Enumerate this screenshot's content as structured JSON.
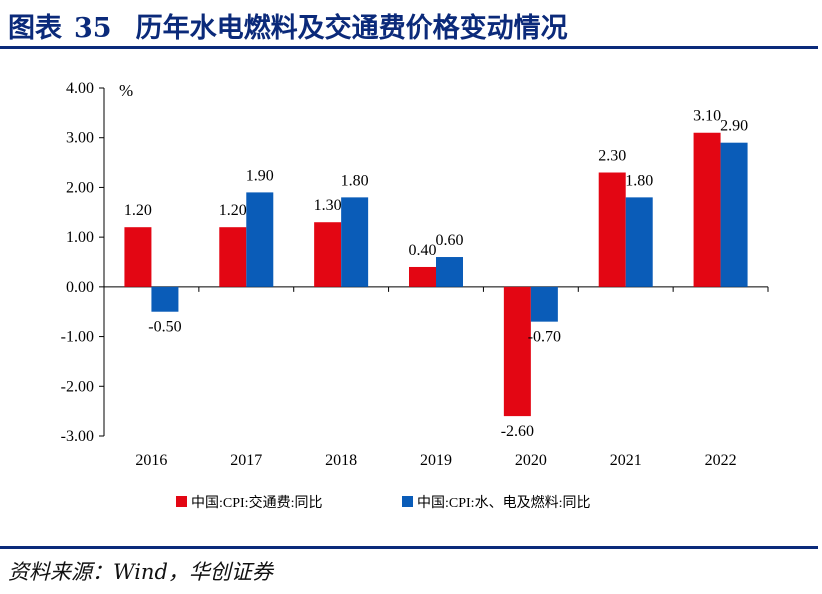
{
  "header": {
    "label": "图表",
    "number": "35",
    "title": "历年水电燃料及交通费价格变动情况"
  },
  "source": "资料来源：Wind，华创证券",
  "chart_data": {
    "type": "bar",
    "unit": "%",
    "categories": [
      "2016",
      "2017",
      "2018",
      "2019",
      "2020",
      "2021",
      "2022"
    ],
    "ylim": [
      -3,
      4
    ],
    "yticks": [
      4,
      3,
      2,
      1,
      0,
      -1,
      -2,
      -3
    ],
    "ytick_labels": [
      "4.00",
      "3.00",
      "2.00",
      "1.00",
      "0.00",
      "-1.00",
      "-2.00",
      "-3.00"
    ],
    "grid": false,
    "legend_position": "bottom",
    "series": [
      {
        "name": "中国:CPI:交通费:同比",
        "color": "#e30613",
        "values": [
          1.2,
          1.2,
          1.3,
          0.4,
          -2.6,
          2.3,
          3.1
        ],
        "labels": [
          "1.20",
          "1.20",
          "1.30",
          "0.40",
          "-2.60",
          "2.30",
          "3.10"
        ]
      },
      {
        "name": "中国:CPI:水、电及燃料:同比",
        "color": "#0a5cb8",
        "values": [
          -0.5,
          1.9,
          1.8,
          0.6,
          -0.7,
          1.8,
          2.9
        ],
        "labels": [
          "-0.50",
          "1.90",
          "1.80",
          "0.60",
          "-0.70",
          "1.80",
          "2.90"
        ]
      }
    ]
  }
}
